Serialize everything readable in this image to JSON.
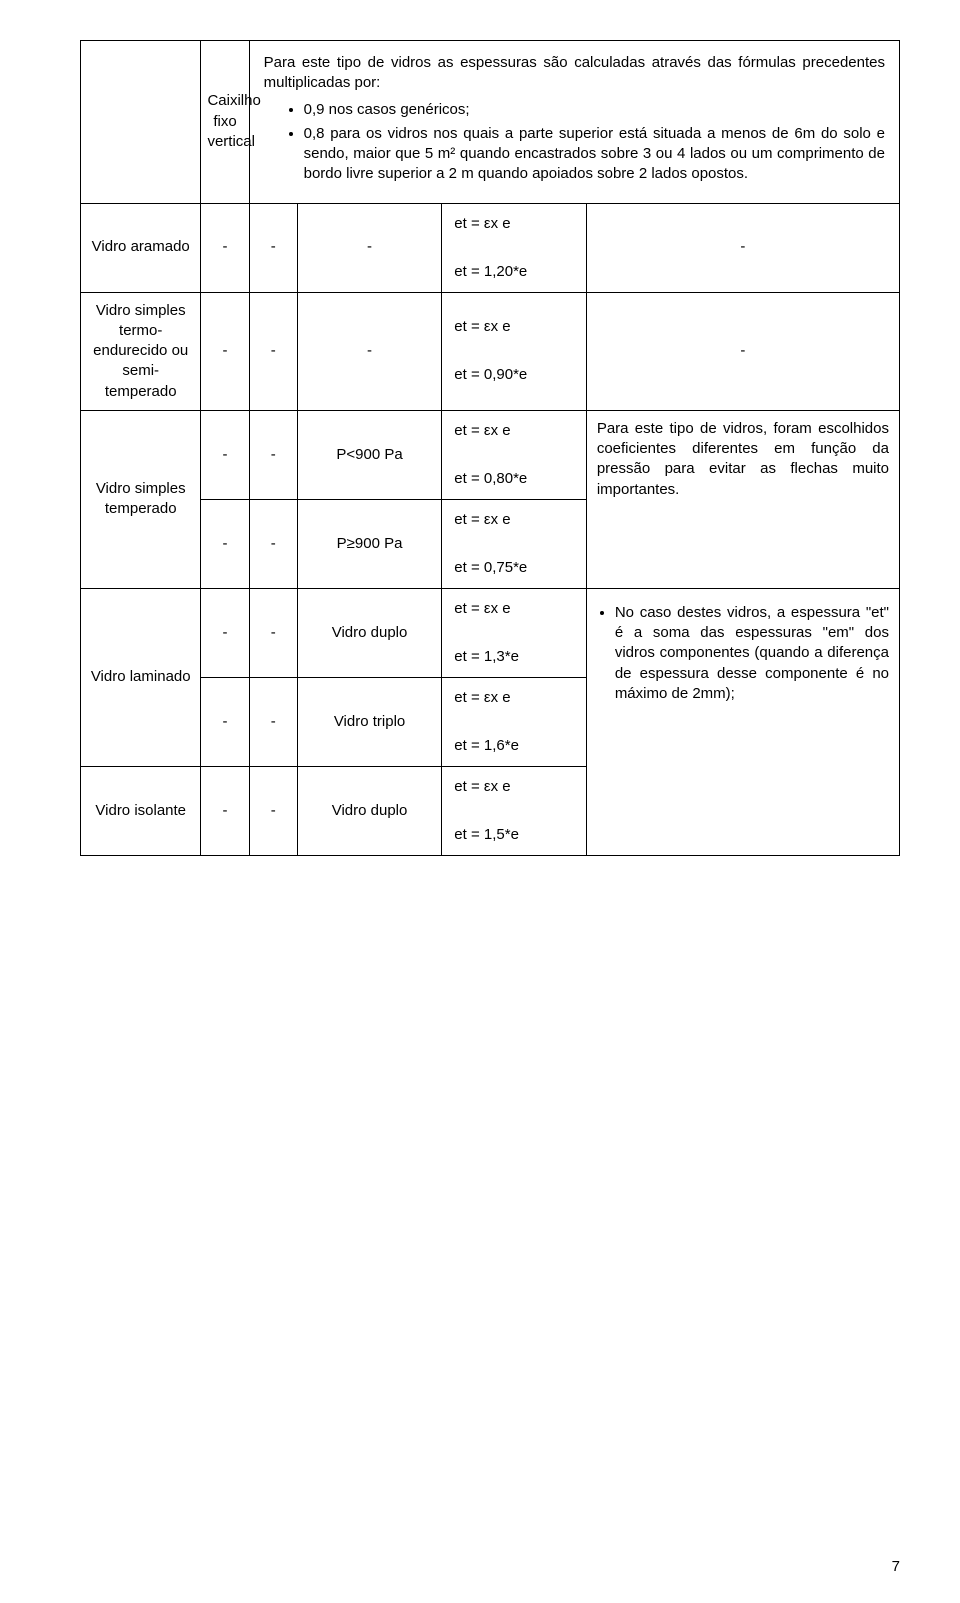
{
  "intro": {
    "col2": "Caixilho fixo vertical",
    "lead": "Para este tipo de vidros as espessuras são calculadas através das fórmulas precedentes multiplicadas por:",
    "bullet1": "0,9 nos casos genéricos;",
    "bullet2": "0,8 para os vidros nos quais a parte superior está situada a menos de 6m do solo e sendo, maior que 5 m² quando encastrados sobre 3 ou 4 lados ou um comprimento de bordo livre superior a 2 m quando apoiados sobre 2 lados opostos."
  },
  "rows": [
    {
      "label": "Vidro aramado",
      "a": "-",
      "b": "-",
      "c": "-",
      "formula": "et = εx e\n\net = 1,20*e",
      "note": "-"
    },
    {
      "label": "Vidro simples termo-endurecido ou semi-temperado",
      "a": "-",
      "b": "-",
      "c": "-",
      "formula": "et = εx e\n\net = 0,90*e",
      "note": "-"
    }
  ],
  "temperado": {
    "label": "Vidro simples temperado",
    "r1": {
      "a": "-",
      "b": "-",
      "c": "P<900 Pa",
      "formula": "et = εx e\n\net = 0,80*e"
    },
    "r2": {
      "a": "-",
      "b": "-",
      "c": "P≥900 Pa",
      "formula": "et = εx e\n\net = 0,75*e"
    },
    "note": "Para este tipo de vidros, foram escolhidos coeficientes diferentes em função da pressão para evitar as flechas muito importantes."
  },
  "laminado": {
    "label": "Vidro laminado",
    "r1": {
      "a": "-",
      "b": "-",
      "c": "Vidro duplo",
      "formula": "et = εx e\n\net = 1,3*e"
    },
    "r2": {
      "a": "-",
      "b": "-",
      "c": "Vidro triplo",
      "formula": "et = εx e\n\net = 1,6*e"
    }
  },
  "isolante": {
    "label": "Vidro isolante",
    "a": "-",
    "b": "-",
    "c": "Vidro duplo",
    "formula": "et = εx e\n\net = 1,5*e"
  },
  "bignote": {
    "bullet": "No caso destes vidros, a espessura \"et\" é a soma das espessuras \"em\" dos vidros componentes (quando a diferença de espessura desse componente é no máximo de 2mm);"
  },
  "pagenum": "7"
}
